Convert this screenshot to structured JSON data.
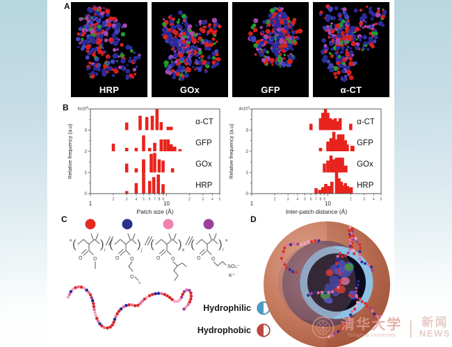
{
  "figure": {
    "panel_a": "A",
    "panel_b": "B",
    "panel_c": "C",
    "panel_d": "D"
  },
  "proteins": [
    {
      "label": "HRP"
    },
    {
      "label": "GOx"
    },
    {
      "label": "GFP"
    },
    {
      "label": "α-CT"
    }
  ],
  "chart_data": [
    {
      "type": "bar",
      "variant": "stacked-row-histograms",
      "xscale": "log",
      "xlim": [
        1,
        50
      ],
      "ylim": [
        0,
        4
      ],
      "ylabel": "Relative frequency (a.u)",
      "ytop_base": "4x10",
      "ytop_exp": "2",
      "yticks": [
        0,
        1,
        2,
        3
      ],
      "xlabel": "Patch size (Å)",
      "xticks": [
        {
          "v": 1,
          "label": "1",
          "major": true
        },
        {
          "v": 2,
          "label": "2"
        },
        {
          "v": 3,
          "label": "3"
        },
        {
          "v": 4,
          "label": "4"
        },
        {
          "v": 5,
          "label": "5"
        },
        {
          "v": 6,
          "label": "6"
        },
        {
          "v": 7,
          "label": "7"
        },
        {
          "v": 8,
          "label": "8"
        },
        {
          "v": 9,
          "label": "9"
        },
        {
          "v": 10,
          "label": "10",
          "major": true
        },
        {
          "v": 20,
          "label": "2"
        },
        {
          "v": 30,
          "label": "3"
        },
        {
          "v": 40,
          "label": "4"
        },
        {
          "v": 50,
          "label": "5"
        }
      ],
      "row_label_x": 24,
      "bar_color": "#e8231d",
      "rows": [
        {
          "label": "HRP",
          "baseline": 0,
          "bars": [
            [
              3,
              0.12
            ],
            [
              4,
              0.5
            ],
            [
              5,
              1.55
            ],
            [
              6,
              0.6
            ],
            [
              6.8,
              0.78
            ],
            [
              7.8,
              0.9
            ],
            [
              9,
              0.45
            ]
          ]
        },
        {
          "label": "GOx",
          "baseline": 1,
          "bars": [
            [
              3,
              0.42
            ],
            [
              4,
              0.2
            ],
            [
              5,
              0.62
            ],
            [
              6.3,
              0.88
            ],
            [
              7,
              0.92
            ],
            [
              8,
              0.62
            ],
            [
              9,
              0.56
            ],
            [
              12,
              0.2
            ]
          ]
        },
        {
          "label": "GFP",
          "baseline": 2,
          "bars": [
            [
              2,
              0.36
            ],
            [
              3,
              0.16
            ],
            [
              4,
              0.16
            ],
            [
              5,
              0.75
            ],
            [
              6,
              0.16
            ],
            [
              7,
              0.4
            ],
            [
              8.5,
              0.56
            ],
            [
              9.5,
              0.56
            ],
            [
              10.5,
              0.56
            ],
            [
              11.5,
              0.33
            ],
            [
              12.5,
              0.22,
              7
            ],
            [
              15,
              0.1
            ]
          ]
        },
        {
          "label": "α-CT",
          "baseline": 3,
          "bars": [
            [
              3,
              0.36
            ],
            [
              4.5,
              0.68
            ],
            [
              5.5,
              0.62
            ],
            [
              6.5,
              0.68
            ],
            [
              7.5,
              1.0
            ],
            [
              8.5,
              0.38
            ],
            [
              11,
              0.16,
              9
            ]
          ]
        }
      ]
    },
    {
      "type": "bar",
      "variant": "stacked-row-histograms",
      "xscale": "log",
      "xlim": [
        1,
        50
      ],
      "ylim": [
        0,
        4
      ],
      "ylabel": "Relative frequency (a.u)",
      "ytop_base": "4x10",
      "ytop_exp": "2",
      "yticks": [
        0,
        1,
        2,
        3
      ],
      "xlabel": "Inter-patch distance (Å)",
      "xticks": [
        {
          "v": 1,
          "label": "1",
          "major": true
        },
        {
          "v": 2,
          "label": "2"
        },
        {
          "v": 3,
          "label": "3"
        },
        {
          "v": 4,
          "label": "4"
        },
        {
          "v": 5,
          "label": "5"
        },
        {
          "v": 6,
          "label": "6"
        },
        {
          "v": 7,
          "label": "7"
        },
        {
          "v": 8,
          "label": "8"
        },
        {
          "v": 9,
          "label": "9"
        },
        {
          "v": 10,
          "label": "10",
          "major": true
        },
        {
          "v": 20,
          "label": "2"
        },
        {
          "v": 30,
          "label": "3"
        },
        {
          "v": 40,
          "label": "4"
        },
        {
          "v": 50,
          "label": "5"
        }
      ],
      "row_label_x": 24,
      "bar_color": "#e8231d",
      "rows": [
        {
          "label": "HRP",
          "baseline": 0,
          "bars": [
            [
              7,
              0.26
            ],
            [
              7.8,
              0.18
            ],
            [
              8.6,
              0.3
            ],
            [
              9.4,
              0.46
            ],
            [
              10.3,
              0.36
            ],
            [
              11.3,
              0.56
            ],
            [
              13,
              1.02
            ],
            [
              14,
              0.72
            ],
            [
              15,
              0.56
            ],
            [
              16,
              0.38
            ],
            [
              17,
              0.5
            ],
            [
              18,
              0.36
            ],
            [
              20,
              0.3,
              6
            ]
          ]
        },
        {
          "label": "GOx",
          "baseline": 1,
          "bars": [
            [
              9,
              0.42
            ],
            [
              10,
              0.56
            ],
            [
              11,
              0.8
            ],
            [
              12,
              0.62
            ],
            [
              13.5,
              0.7,
              8
            ],
            [
              15,
              0.7,
              8
            ],
            [
              17,
              0.32,
              6
            ]
          ]
        },
        {
          "label": "GFP",
          "baseline": 2,
          "bars": [
            [
              8,
              0.16
            ],
            [
              10,
              0.46
            ],
            [
              11,
              0.62
            ],
            [
              12,
              0.92
            ],
            [
              13,
              0.56
            ],
            [
              14,
              0.8,
              6
            ],
            [
              15.5,
              0.8,
              6
            ],
            [
              17,
              0.52
            ],
            [
              18,
              0.32
            ],
            [
              21,
              0.26,
              6
            ]
          ]
        },
        {
          "label": "α-CT",
          "baseline": 3,
          "bars": [
            [
              6,
              0.3
            ],
            [
              8,
              0.56
            ],
            [
              8.6,
              0.82
            ],
            [
              9.3,
              1.02
            ],
            [
              10,
              0.82
            ],
            [
              10.8,
              0.56
            ],
            [
              11.6,
              0.5
            ],
            [
              12.5,
              0.56
            ],
            [
              13.5,
              0.42
            ],
            [
              14.5,
              0.56
            ],
            [
              20,
              0.3
            ]
          ]
        }
      ]
    }
  ],
  "polymer": {
    "dots": [
      "#e32b24",
      "#2b2f8e",
      "#ef82ae",
      "#99419d"
    ],
    "units": [
      {
        "sub": "i"
      },
      {
        "sub": "j"
      },
      {
        "sub": "k"
      },
      {
        "sub": "l"
      }
    ],
    "o_label": "O",
    "oeg_sub": "n",
    "so3_label": "SO₃⁻",
    "k_label": "K⁺"
  },
  "legend": {
    "hydrophilic": {
      "label": "Hydrophilic",
      "color": "#4b9cc7",
      "ring": "#3c7ea6"
    },
    "hydrophobic": {
      "label": "Hydrophobic",
      "color": "#c2473f",
      "ring": "#9c362f"
    }
  },
  "watermark": {
    "cn": "清华大学",
    "en": "Tsinghua University",
    "divider": "|",
    "news_cn": "新闻",
    "news_en": "NEWS"
  },
  "colors": {
    "bar": "#e8231d",
    "panel_bg": "#000000",
    "card": "#ffffff",
    "background_top": "#b7d6e0",
    "capsule_shell": "#c67a5e",
    "capsule_ring": "#8ec2e4",
    "capsule_core": "#0b0b1c"
  }
}
